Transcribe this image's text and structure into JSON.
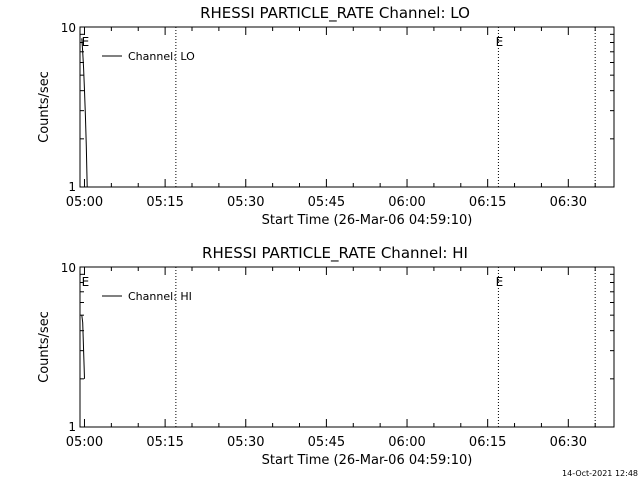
{
  "footer_timestamp": "14-Oct-2021 12:48",
  "chart_data": [
    {
      "type": "line",
      "title": "RHESSI PARTICLE_RATE Channel: LO",
      "xlabel": "Start Time (26-Mar-06 04:59:10)",
      "ylabel": "Counts/sec",
      "y_scale": "log",
      "ylim": [
        1,
        10
      ],
      "y_tick_labels": [
        "1",
        "10"
      ],
      "x_start_time": "04:59:10",
      "x_ticks": [
        "05:00",
        "05:15",
        "05:30",
        "05:45",
        "06:00",
        "06:15",
        "06:30"
      ],
      "xlim": [
        "04:59:10",
        "06:38:30"
      ],
      "marker_label": "E",
      "event_lines": [
        "05:17",
        "06:17",
        "06:35"
      ],
      "event_markers": [
        "05:00",
        "06:17"
      ],
      "legend": {
        "label": "Channel: LO",
        "position": "top-left"
      },
      "grid": false,
      "series": [
        {
          "name": "Channel: LO",
          "x": [
            "04:59:30",
            "04:59:40",
            "04:59:50",
            "05:00:00",
            "05:00:10",
            "05:00:20",
            "05:00:30"
          ],
          "y": [
            8.5,
            7.0,
            5.5,
            4.0,
            2.8,
            1.8,
            1.0
          ]
        }
      ]
    },
    {
      "type": "line",
      "title": "RHESSI PARTICLE_RATE Channel: HI",
      "xlabel": "Start Time (26-Mar-06 04:59:10)",
      "ylabel": "Counts/sec",
      "y_scale": "log",
      "ylim": [
        1,
        10
      ],
      "y_tick_labels": [
        "1",
        "10"
      ],
      "x_start_time": "04:59:10",
      "x_ticks": [
        "05:00",
        "05:15",
        "05:30",
        "05:45",
        "06:00",
        "06:15",
        "06:30"
      ],
      "xlim": [
        "04:59:10",
        "06:38:30"
      ],
      "marker_label": "E",
      "event_lines": [
        "05:17",
        "06:17",
        "06:35"
      ],
      "event_markers": [
        "05:00",
        "06:17"
      ],
      "legend": {
        "label": "Channel: HI",
        "position": "top-left"
      },
      "grid": false,
      "series": [
        {
          "name": "Channel: HI",
          "x": [
            "04:59:30",
            "04:59:40",
            "04:59:50",
            "05:00:00"
          ],
          "y": [
            5.0,
            4.5,
            3.0,
            2.0
          ]
        }
      ]
    }
  ]
}
